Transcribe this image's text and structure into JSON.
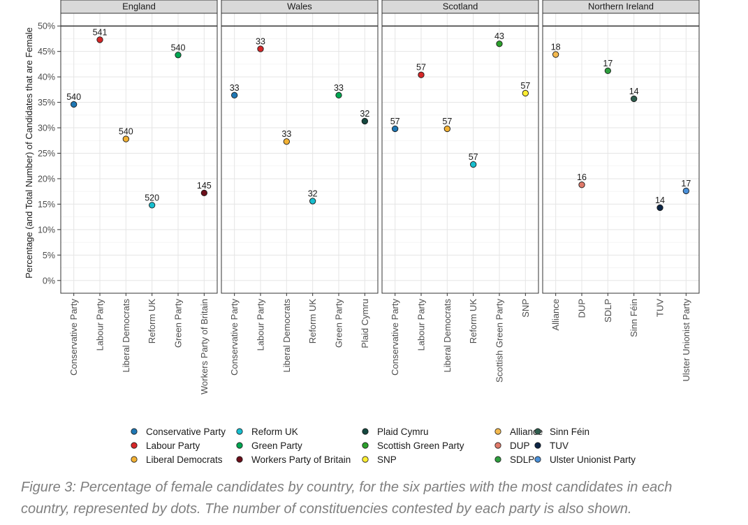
{
  "chart_data": {
    "type": "scatter",
    "ylabel": "Percentage (and Total Number) of Candidates that are Female",
    "y_ticks": [
      "0%",
      "5%",
      "10%",
      "15%",
      "20%",
      "25%",
      "30%",
      "35%",
      "40%",
      "45%",
      "50%"
    ],
    "ylim": [
      -2.5,
      52.5
    ],
    "reference_line": 50,
    "panels": [
      {
        "title": "England",
        "categories": [
          "Conservative Party",
          "Labour Party",
          "Liberal Democrats",
          "Reform UK",
          "Green Party",
          "Workers Party of Britain"
        ],
        "values": [
          34.6,
          47.3,
          27.8,
          14.8,
          44.3,
          17.2
        ],
        "labels": [
          "540",
          "541",
          "540",
          "520",
          "540",
          "145"
        ]
      },
      {
        "title": "Wales",
        "categories": [
          "Conservative Party",
          "Labour Party",
          "Liberal Democrats",
          "Reform UK",
          "Green Party",
          "Plaid Cymru"
        ],
        "values": [
          36.4,
          45.5,
          27.3,
          15.6,
          36.4,
          31.3
        ],
        "labels": [
          "33",
          "33",
          "33",
          "32",
          "33",
          "32"
        ]
      },
      {
        "title": "Scotland",
        "categories": [
          "Conservative Party",
          "Labour Party",
          "Liberal Democrats",
          "Reform UK",
          "Scottish Green Party",
          "SNP"
        ],
        "values": [
          29.8,
          40.4,
          29.8,
          22.8,
          46.5,
          36.8
        ],
        "labels": [
          "57",
          "57",
          "57",
          "57",
          "43",
          "57"
        ]
      },
      {
        "title": "Northern Ireland",
        "categories": [
          "Alliance",
          "DUP",
          "SDLP",
          "Sinn Féin",
          "TUV",
          "Ulster Unionist Party"
        ],
        "values": [
          44.4,
          18.8,
          41.2,
          35.7,
          14.3,
          17.6
        ],
        "labels": [
          "18",
          "16",
          "17",
          "14",
          "14",
          "17"
        ]
      }
    ],
    "legend": {
      "columns": [
        [
          {
            "name": "Conservative Party",
            "color": "#1f77b4"
          },
          {
            "name": "Labour Party",
            "color": "#d62728"
          },
          {
            "name": "Liberal Democrats",
            "color": "#f2b134"
          }
        ],
        [
          {
            "name": "Reform UK",
            "color": "#17becf"
          },
          {
            "name": "Green Party",
            "color": "#00a651"
          },
          {
            "name": "Workers Party of Britain",
            "color": "#6b0f1a"
          }
        ],
        [
          {
            "name": "Plaid Cymru",
            "color": "#14483f"
          },
          {
            "name": "Scottish Green Party",
            "color": "#2ca02c"
          },
          {
            "name": "SNP",
            "color": "#ffee33"
          }
        ],
        [
          {
            "name": "Alliance",
            "color": "#f3b94e"
          },
          {
            "name": "DUP",
            "color": "#e07a6a"
          },
          {
            "name": "SDLP",
            "color": "#2e9e3e"
          }
        ],
        [
          {
            "name": "Sinn Féin",
            "color": "#2f5e4e"
          },
          {
            "name": "TUV",
            "color": "#0c2545"
          },
          {
            "name": "Ulster Unionist Party",
            "color": "#4a90d9"
          }
        ]
      ]
    }
  },
  "caption": {
    "line1": "Figure 3: Percentage of female candidates by country, for the six parties with the most candidates in each",
    "line2": "country, represented by dots.  The number of constituencies contested by each party is also shown."
  }
}
